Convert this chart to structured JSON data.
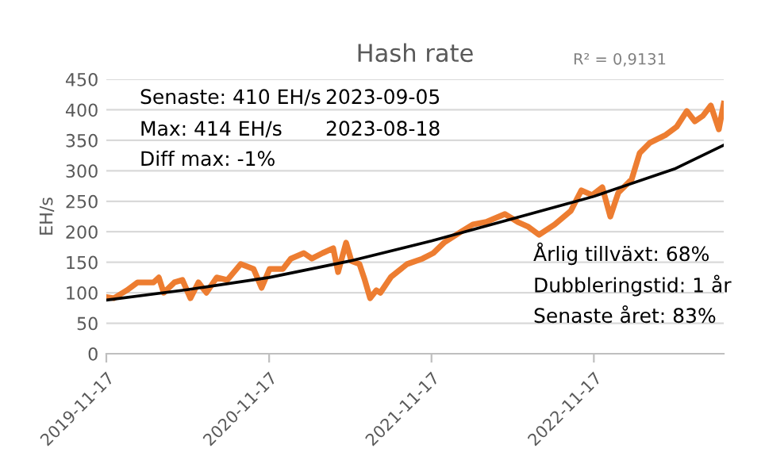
{
  "chart_data": {
    "type": "line",
    "title": "Hash rate",
    "ylabel": "EH/s",
    "ylim": [
      0,
      450
    ],
    "yticks": [
      0,
      50,
      100,
      150,
      200,
      250,
      300,
      350,
      400,
      450
    ],
    "xlim": [
      "2019-11-17",
      "2023-09-05"
    ],
    "xticks": [
      {
        "value": "2019-11-17",
        "label": "2019-11-17"
      },
      {
        "value": "2020-11-17",
        "label": "2020-11-17"
      },
      {
        "value": "2021-11-17",
        "label": "2021-11-17"
      },
      {
        "value": "2022-11-17",
        "label": "2022-11-17"
      }
    ],
    "grid": "y",
    "legend": false,
    "series": [
      {
        "color": "#ed7d31",
        "x": [
          "2019-11-17",
          "2019-12-04",
          "2020-01-02",
          "2020-01-26",
          "2020-03-02",
          "2020-03-14",
          "2020-03-25",
          "2020-04-18",
          "2020-05-06",
          "2020-05-24",
          "2020-06-11",
          "2020-06-29",
          "2020-07-22",
          "2020-08-15",
          "2020-09-14",
          "2020-10-13",
          "2020-10-31",
          "2020-11-18",
          "2020-12-18",
          "2021-01-05",
          "2021-02-03",
          "2021-02-21",
          "2021-03-17",
          "2021-04-10",
          "2021-04-21",
          "2021-05-09",
          "2021-05-21",
          "2021-06-08",
          "2021-06-20",
          "2021-07-02",
          "2021-07-16",
          "2021-07-25",
          "2021-08-18",
          "2021-09-23",
          "2021-10-28",
          "2021-11-21",
          "2021-12-15",
          "2022-01-20",
          "2022-02-18",
          "2022-03-20",
          "2022-05-01",
          "2022-05-30",
          "2022-06-23",
          "2022-07-17",
          "2022-08-21",
          "2022-09-26",
          "2022-10-20",
          "2022-11-13",
          "2022-12-06",
          "2022-12-24",
          "2023-01-11",
          "2023-02-10",
          "2023-02-28",
          "2023-03-23",
          "2023-04-28",
          "2023-05-22",
          "2023-06-14",
          "2023-07-02",
          "2023-07-20",
          "2023-08-07",
          "2023-08-25",
          "2023-09-05"
        ],
        "values": [
          93,
          91,
          104,
          117,
          117,
          125,
          100,
          117,
          121,
          91,
          117,
          100,
          125,
          121,
          147,
          139,
          108,
          139,
          139,
          156,
          165,
          156,
          165,
          173,
          134,
          182,
          152,
          147,
          121,
          91,
          104,
          100,
          126,
          147,
          156,
          165,
          182,
          199,
          212,
          216,
          229,
          216,
          208,
          195,
          212,
          234,
          268,
          260,
          273,
          225,
          264,
          286,
          329,
          346,
          359,
          372,
          398,
          381,
          390,
          407,
          368,
          410
        ]
      },
      {
        "color": "#000000",
        "x": [
          "2019-11-17",
          "2020-05-17",
          "2020-11-17",
          "2021-05-17",
          "2021-11-17",
          "2022-05-17",
          "2022-11-17",
          "2023-05-17",
          "2023-09-05"
        ],
        "values": [
          88,
          105,
          125,
          152,
          185,
          221,
          258,
          303,
          342
        ]
      }
    ],
    "annotations": [
      "Senaste: 410 EH/s",
      "2023-09-05",
      "Max: 414 EH/s",
      "2023-08-18",
      "Diff max: -1%",
      "R² = 0,9131",
      "Årlig tillväxt: 68%",
      "Dubbleringstid: 1 år",
      "Senaste året: 83%"
    ]
  }
}
